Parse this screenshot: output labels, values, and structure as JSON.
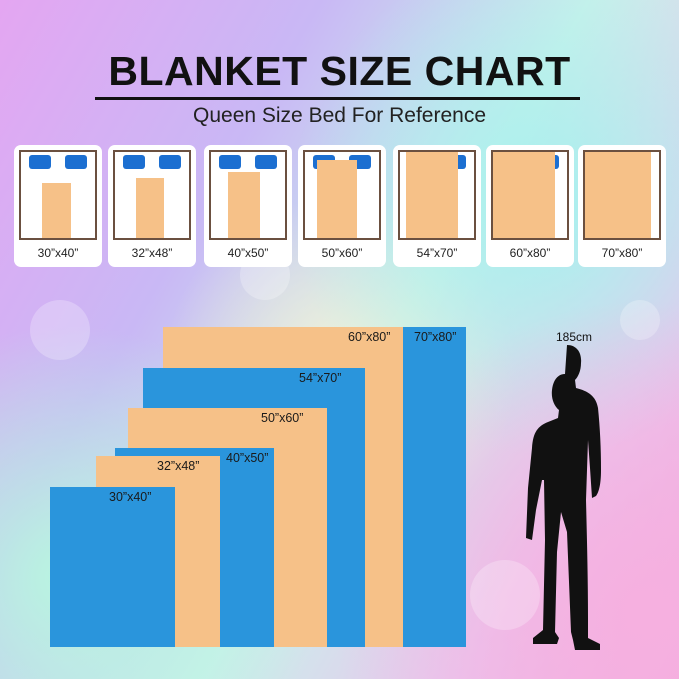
{
  "title": "BLANKET SIZE CHART",
  "subtitle": "Queen Size Bed For Reference",
  "colors": {
    "blanket_peach": "#f6c188",
    "blanket_blue": "#2a95dc",
    "pillow": "#1c6fd1",
    "bed_frame": "#6b5040"
  },
  "sizes": [
    {
      "label": "30”x40”",
      "width_in": 30,
      "length_in": 40
    },
    {
      "label": "32”x48”",
      "width_in": 32,
      "length_in": 48
    },
    {
      "label": "40”x50”",
      "width_in": 40,
      "length_in": 50
    },
    {
      "label": "50”x60”",
      "width_in": 50,
      "length_in": 60
    },
    {
      "label": "54”x70”",
      "width_in": 54,
      "length_in": 70
    },
    {
      "label": "60”x80”",
      "width_in": 60,
      "length_in": 80
    },
    {
      "label": "70”x80”",
      "width_in": 70,
      "length_in": 80
    }
  ],
  "reference_person": {
    "height_label": "185cm",
    "icon": "man-silhouette-icon"
  }
}
